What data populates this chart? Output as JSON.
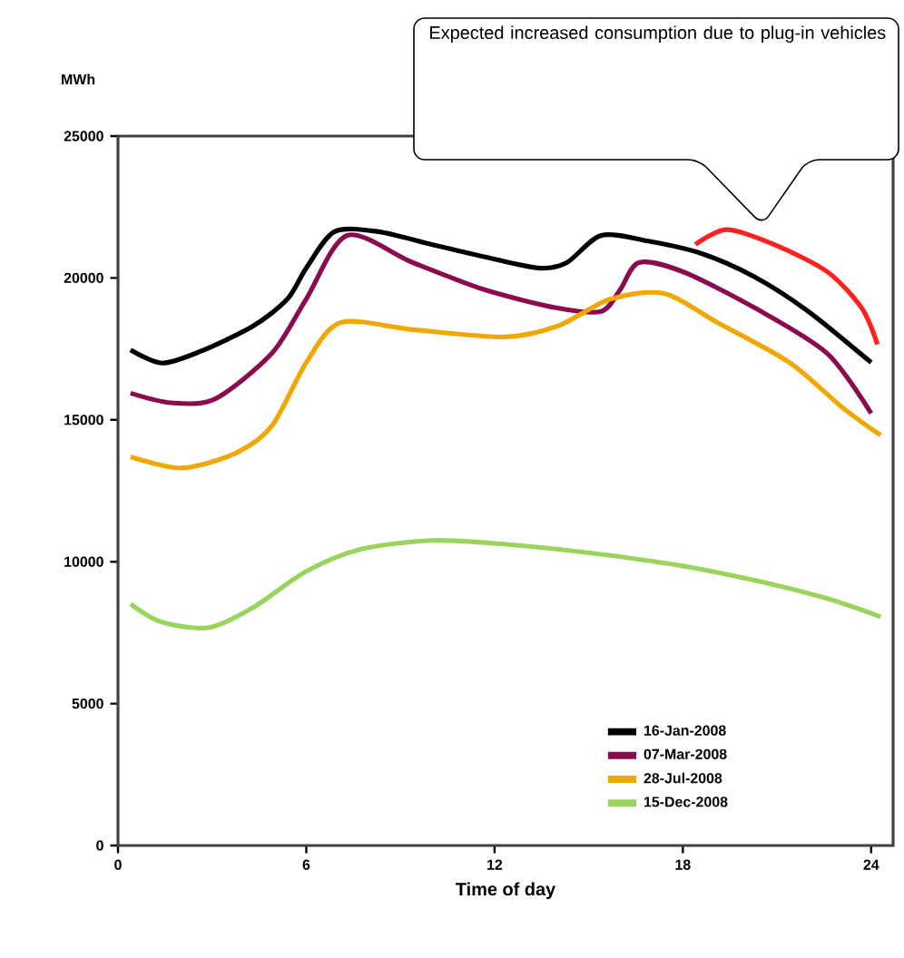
{
  "chart_data": {
    "type": "line",
    "xlabel": "Time of day",
    "ylabel": "MWh",
    "annotations": [
      "Expected increased consumption due to plug-in vehicles"
    ],
    "xlim": [
      0,
      24.7
    ],
    "xticks": [
      0,
      6,
      12,
      18,
      24
    ],
    "ylim": [
      0,
      25000
    ],
    "yticks": [
      0,
      5000,
      10000,
      15000,
      20000,
      25000
    ],
    "grid": false,
    "legend": "bottom right",
    "marker": "none",
    "line_style": "solid",
    "series": [
      {
        "name": "16-Jan-2008",
        "color": "#000000",
        "x": [
          0.4,
          1.4,
          2.6,
          4.3,
          5.4,
          6,
          6.9,
          8.3,
          10,
          11.7,
          13.4,
          14.3,
          15.4,
          16.9,
          18.6,
          20.3,
          22,
          24
        ],
        "values": [
          17460,
          17000,
          17400,
          18300,
          19260,
          20350,
          21630,
          21630,
          21180,
          20740,
          20350,
          20540,
          21500,
          21300,
          20860,
          20030,
          18820,
          17020
        ]
      },
      {
        "name": "07-Mar-2008",
        "color": "#8b0a4e",
        "x": [
          0.4,
          1.7,
          3.1,
          4.9,
          6,
          7.3,
          9.4,
          11.7,
          14,
          15.4,
          16,
          16.6,
          18,
          20.3,
          22.6,
          24
        ],
        "values": [
          15940,
          15600,
          15740,
          17340,
          19260,
          21500,
          20540,
          19580,
          18940,
          18820,
          19580,
          20540,
          20220,
          18940,
          17340,
          15230
        ]
      },
      {
        "name": "28-Jul-2008",
        "color": "#f0a800",
        "x": [
          0.4,
          2,
          3.7,
          4.9,
          6,
          7.1,
          9.4,
          12.3,
          14,
          15.7,
          17.4,
          19.1,
          21.4,
          23.1,
          24.3
        ],
        "values": [
          13700,
          13300,
          13800,
          14780,
          17020,
          18430,
          18180,
          17920,
          18300,
          19260,
          19450,
          18430,
          17020,
          15420,
          14460
        ]
      },
      {
        "name": "15-Dec-2008",
        "color": "#99d45c",
        "x": [
          0.4,
          1.4,
          2.9,
          4.3,
          6,
          7.7,
          10,
          12.3,
          15.1,
          18,
          20.3,
          22.6,
          24.3
        ],
        "values": [
          8510,
          7870,
          7680,
          8380,
          9660,
          10430,
          10750,
          10620,
          10300,
          9850,
          9340,
          8700,
          8060
        ]
      },
      {
        "color": "#ff2020",
        "x": [
          18.4,
          19.4,
          20.9,
          22.6,
          23.7,
          24.2
        ],
        "values": [
          21180,
          21700,
          21180,
          20220,
          18940,
          17660
        ]
      }
    ]
  }
}
